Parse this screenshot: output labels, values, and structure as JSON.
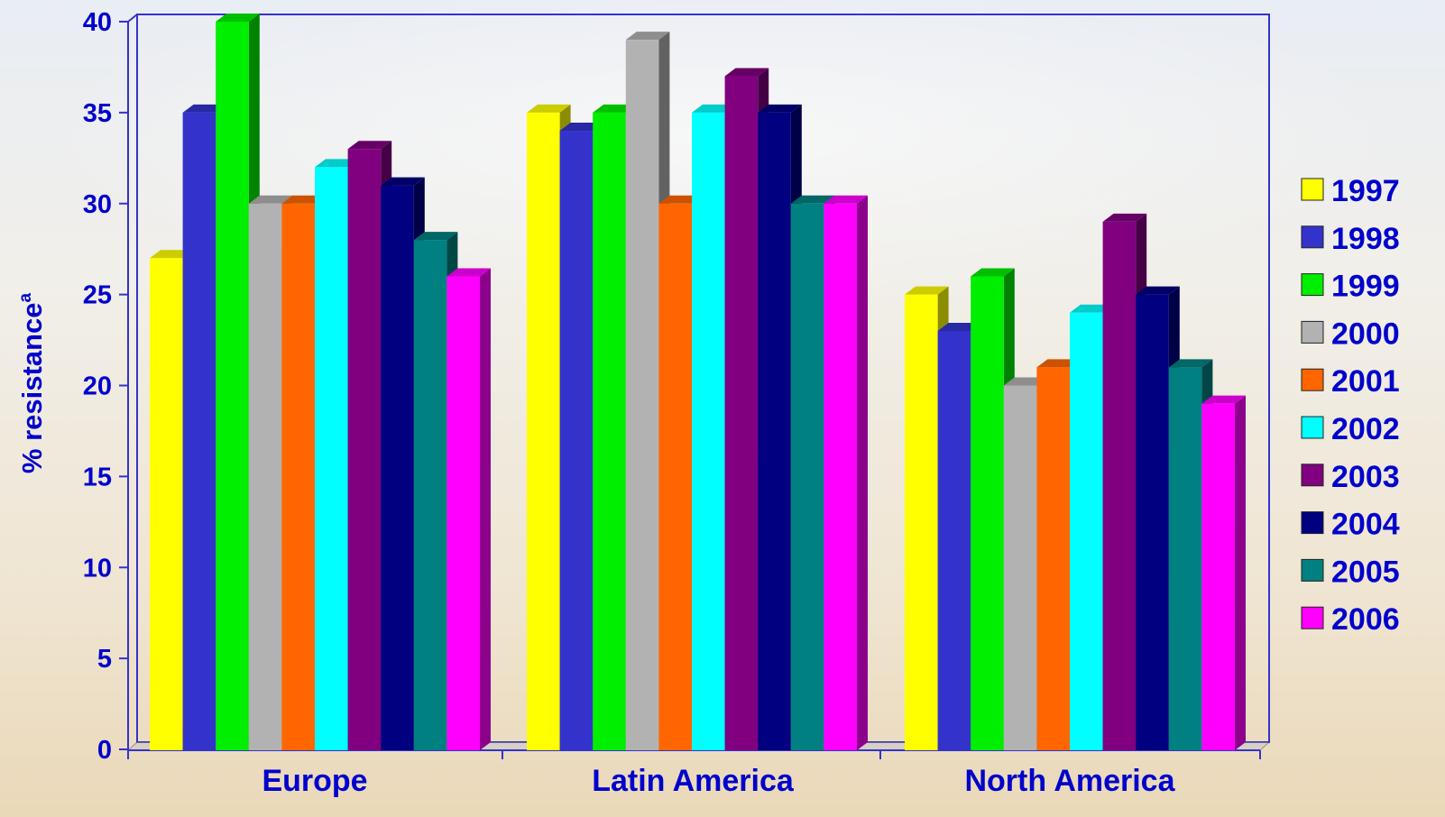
{
  "chart_data": {
    "type": "bar",
    "title": "",
    "ylabel": "% resistance",
    "ylabel_superscript": "a",
    "xlabel": "",
    "ylim": [
      0,
      40
    ],
    "yticks": [
      0,
      5,
      10,
      15,
      20,
      25,
      30,
      35,
      40
    ],
    "categories": [
      "Europe",
      "Latin America",
      "North America"
    ],
    "legend_position": "right",
    "series": [
      {
        "name": "1997",
        "color": "#ffff00",
        "values": [
          27,
          35,
          25
        ]
      },
      {
        "name": "1998",
        "color": "#3333cc",
        "values": [
          35,
          34,
          23
        ]
      },
      {
        "name": "1999",
        "color": "#00ee00",
        "values": [
          40,
          35,
          26
        ]
      },
      {
        "name": "2000",
        "color": "#b2b2b2",
        "values": [
          30,
          39,
          20
        ]
      },
      {
        "name": "2001",
        "color": "#ff6600",
        "values": [
          30,
          30,
          21
        ]
      },
      {
        "name": "2002",
        "color": "#00ffff",
        "values": [
          32,
          35,
          24
        ]
      },
      {
        "name": "2003",
        "color": "#800080",
        "values": [
          33,
          37,
          29
        ]
      },
      {
        "name": "2004",
        "color": "#000080",
        "values": [
          31,
          35,
          25
        ]
      },
      {
        "name": "2005",
        "color": "#008080",
        "values": [
          28,
          30,
          21
        ]
      },
      {
        "name": "2006",
        "color": "#ff00ff",
        "values": [
          26,
          30,
          19
        ]
      }
    ],
    "text_color": "#0000cc",
    "axis_color": "#3333cc"
  }
}
